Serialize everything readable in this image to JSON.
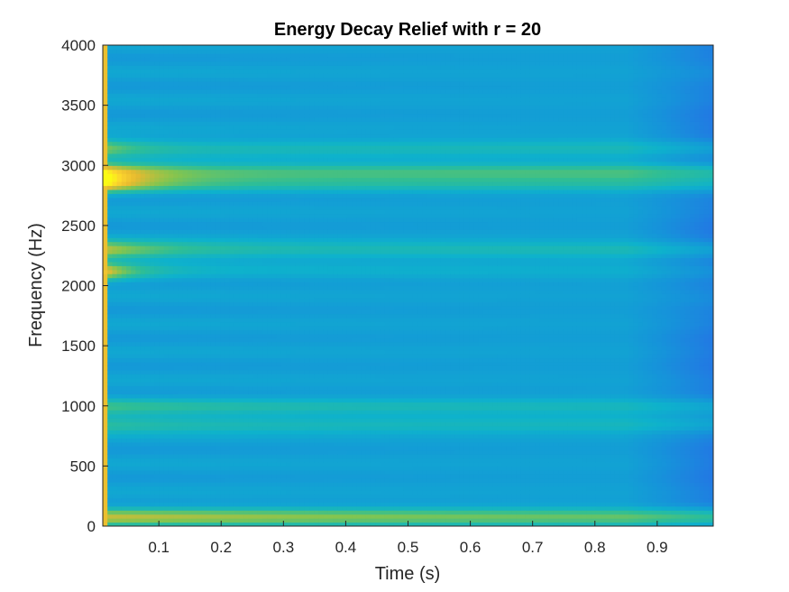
{
  "chart_data": {
    "type": "heatmap",
    "title": "Energy Decay Relief with r = 20",
    "xlabel": "Time (s)",
    "ylabel": "Frequency (Hz)",
    "xlim": [
      0.01,
      0.99
    ],
    "ylim": [
      0,
      4000
    ],
    "xticks": [
      0.1,
      0.2,
      0.3,
      0.4,
      0.5,
      0.6,
      0.7,
      0.8,
      0.9
    ],
    "xtick_labels": [
      "0.1",
      "0.2",
      "0.3",
      "0.4",
      "0.5",
      "0.6",
      "0.7",
      "0.8",
      "0.9"
    ],
    "yticks": [
      0,
      500,
      1000,
      1500,
      2000,
      2500,
      3000,
      3500,
      4000
    ],
    "ytick_labels": [
      "0",
      "500",
      "1000",
      "1500",
      "2000",
      "2500",
      "3000",
      "3500",
      "4000"
    ],
    "colormap": "parula",
    "background_level": 0.35,
    "frequency_bands": [
      {
        "frequency": 2950,
        "peak": 0.97,
        "decay": 0.08,
        "tail": 0.58
      },
      {
        "frequency": 2850,
        "peak": 0.95,
        "decay": 0.07,
        "tail": 0.48
      },
      {
        "frequency": 2300,
        "peak": 0.8,
        "decay": 0.1,
        "tail": 0.48
      },
      {
        "frequency": 2120,
        "peak": 0.88,
        "decay": 0.05,
        "tail": 0.4
      },
      {
        "frequency": 3150,
        "peak": 0.7,
        "decay": 0.06,
        "tail": 0.47
      },
      {
        "frequency": 1000,
        "peak": 0.55,
        "decay": 0.2,
        "tail": 0.45
      },
      {
        "frequency": 850,
        "peak": 0.55,
        "decay": 0.2,
        "tail": 0.46
      },
      {
        "frequency": 80,
        "peak": 0.75,
        "decay": 0.5,
        "tail": 0.6
      }
    ]
  }
}
